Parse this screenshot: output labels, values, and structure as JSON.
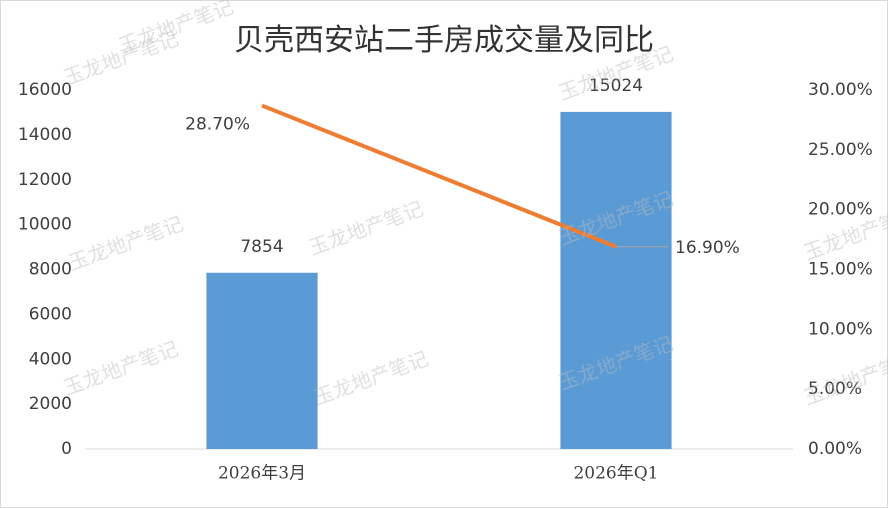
{
  "chart_data": {
    "type": "bar_line",
    "title": "贝壳西安站二手房成交量及同比",
    "watermark": "玉龙地产笔记",
    "categories": [
      "2026年3月",
      "2026年Q1"
    ],
    "series": [
      {
        "type": "bar",
        "color": "#5b9bd5",
        "values": [
          7854,
          15024
        ]
      },
      {
        "type": "line",
        "axis": "y2",
        "color": "#ed7d31",
        "values": [
          28.7,
          16.9
        ],
        "value_labels": [
          "28.70%",
          "16.90%"
        ]
      }
    ],
    "ylim": [
      0,
      16000
    ],
    "yticks": [
      0,
      2000,
      4000,
      6000,
      8000,
      10000,
      12000,
      14000,
      16000
    ],
    "y2lim": [
      0,
      30
    ],
    "y2ticks": [
      {
        "value": 0,
        "label": "0.00%"
      },
      {
        "value": 5,
        "label": "5.00%"
      },
      {
        "value": 10,
        "label": "10.00%"
      },
      {
        "value": 15,
        "label": "15.00%"
      },
      {
        "value": 20,
        "label": "20.00%"
      },
      {
        "value": 25,
        "label": "25.00%"
      },
      {
        "value": 30,
        "label": "30.00%"
      }
    ],
    "grid": false
  }
}
